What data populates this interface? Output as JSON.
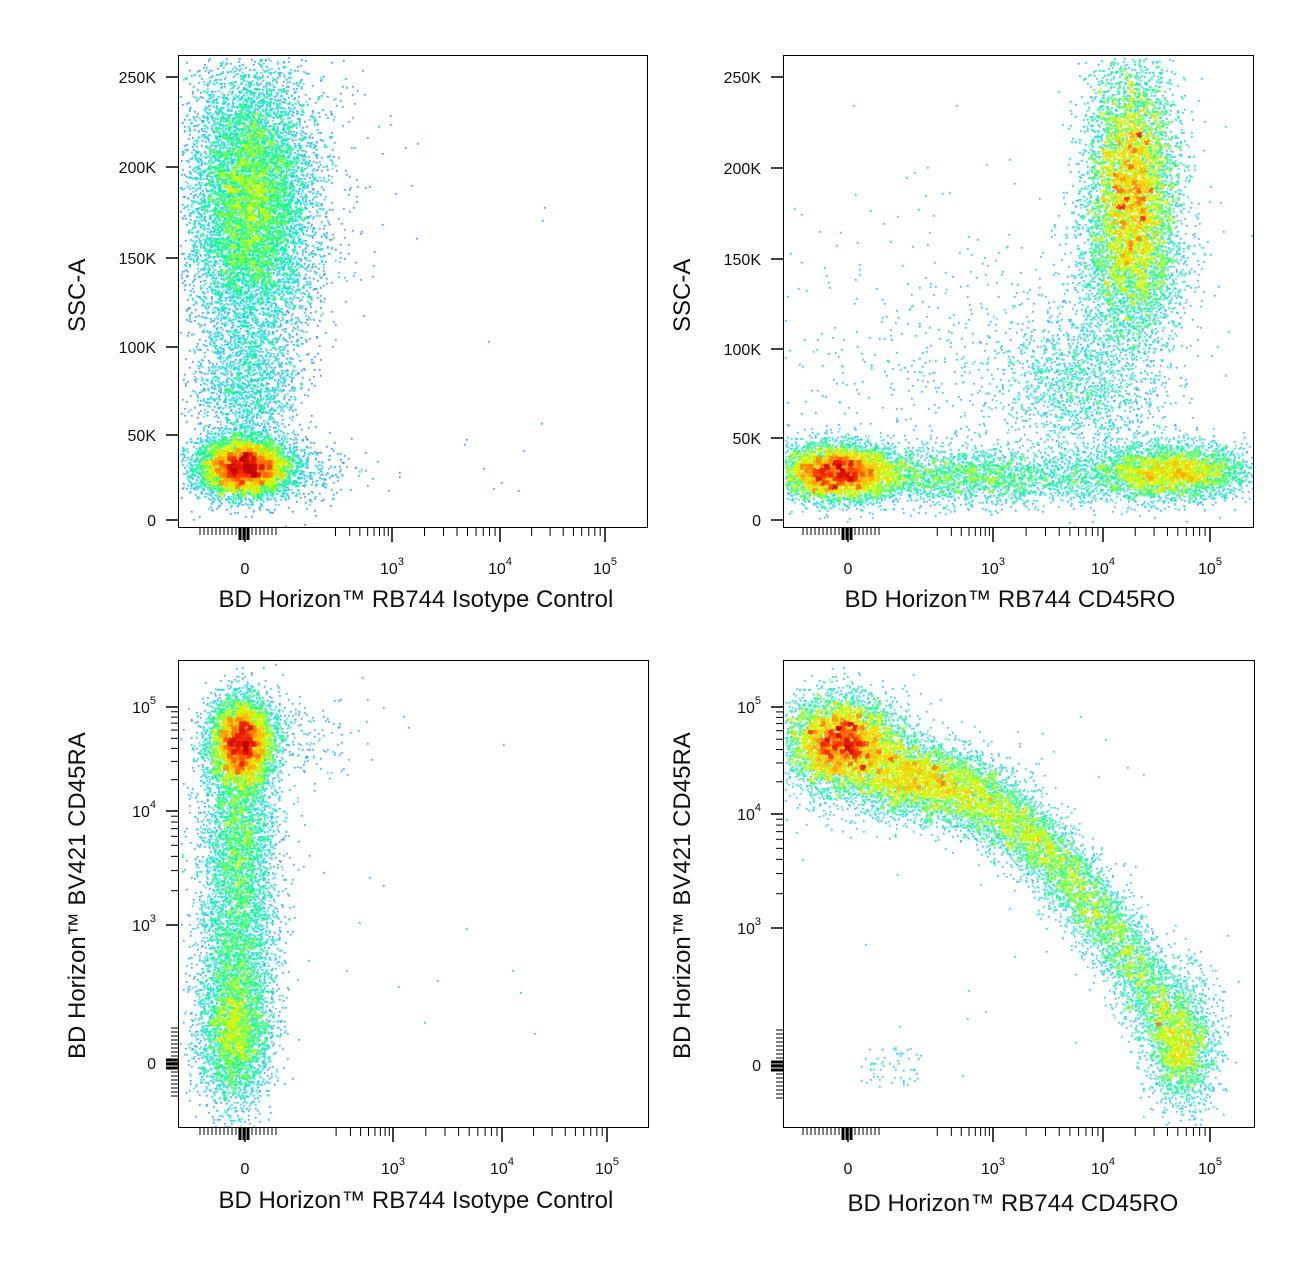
{
  "chart_data": [
    {
      "type": "scatter",
      "xlabel": "BD Horizon™ RB744 Isotype Control",
      "ylabel": "SSC-A",
      "x_scale": "biexponential",
      "y_scale": "linear",
      "x_ticks": [
        "0",
        "10^3",
        "10^4",
        "10^5"
      ],
      "y_ticks": [
        "0",
        "50K",
        "100K",
        "150K",
        "200K",
        "250K"
      ],
      "ylim": [
        0,
        262144
      ],
      "populations": [
        {
          "name_hint": "",
          "x_center": 0,
          "y_center": 180000,
          "density": "high"
        },
        {
          "name_hint": "",
          "x_center": 0,
          "y_center": 80000,
          "density": "low"
        },
        {
          "name_hint": "",
          "x_center": 0,
          "y_center": 30000,
          "density": "very high"
        }
      ]
    },
    {
      "type": "scatter",
      "xlabel": "BD Horizon™ RB744 CD45RO",
      "ylabel": "SSC-A",
      "x_scale": "biexponential",
      "y_scale": "linear",
      "x_ticks": [
        "0",
        "10^3",
        "10^4",
        "10^5"
      ],
      "y_ticks": [
        "0",
        "50K",
        "100K",
        "150K",
        "200K",
        "250K"
      ],
      "ylim": [
        0,
        262144
      ],
      "populations": [
        {
          "x_center": 15000,
          "y_center": 180000,
          "density": "high"
        },
        {
          "x_center": 0,
          "y_center": 30000,
          "density": "high"
        },
        {
          "x_center": 5000,
          "y_center": 30000,
          "density": "medium"
        },
        {
          "x_center": 10000,
          "y_center": 75000,
          "density": "low"
        }
      ]
    },
    {
      "type": "scatter",
      "xlabel": "BD Horizon™ RB744 Isotype Control",
      "ylabel": "BD Horizon™ BV421 CD45RA",
      "x_scale": "biexponential",
      "y_scale": "biexponential",
      "x_ticks": [
        "0",
        "10^3",
        "10^4",
        "10^5"
      ],
      "y_ticks": [
        "0",
        "10^3",
        "10^4",
        "10^5"
      ],
      "populations": [
        {
          "x_center": 0,
          "y_center": 40000,
          "density": "very high"
        },
        {
          "x_center": 0,
          "y_center": 1000,
          "density": "medium"
        },
        {
          "x_center": 0,
          "y_center": 50,
          "density": "medium"
        }
      ]
    },
    {
      "type": "scatter",
      "xlabel": "BD Horizon™ RB744 CD45RO",
      "ylabel": "BD Horizon™ BV421 CD45RA",
      "x_scale": "biexponential",
      "y_scale": "biexponential",
      "x_ticks": [
        "0",
        "10^3",
        "10^4",
        "10^5"
      ],
      "y_ticks": [
        "0",
        "10^3",
        "10^4",
        "10^5"
      ],
      "populations": [
        {
          "x_center": 0,
          "y_center": 40000,
          "density": "very high"
        },
        {
          "x_center": 3000,
          "y_center": 8000,
          "density": "medium"
        },
        {
          "x_center": 20000,
          "y_center": 1500,
          "density": "medium"
        },
        {
          "x_center": 50000,
          "y_center": 50,
          "density": "medium"
        }
      ]
    }
  ],
  "colormap": [
    "#0000ff",
    "#00c8ff",
    "#00ff80",
    "#c8ff00",
    "#ffc800",
    "#ff3000",
    "#c00000"
  ]
}
